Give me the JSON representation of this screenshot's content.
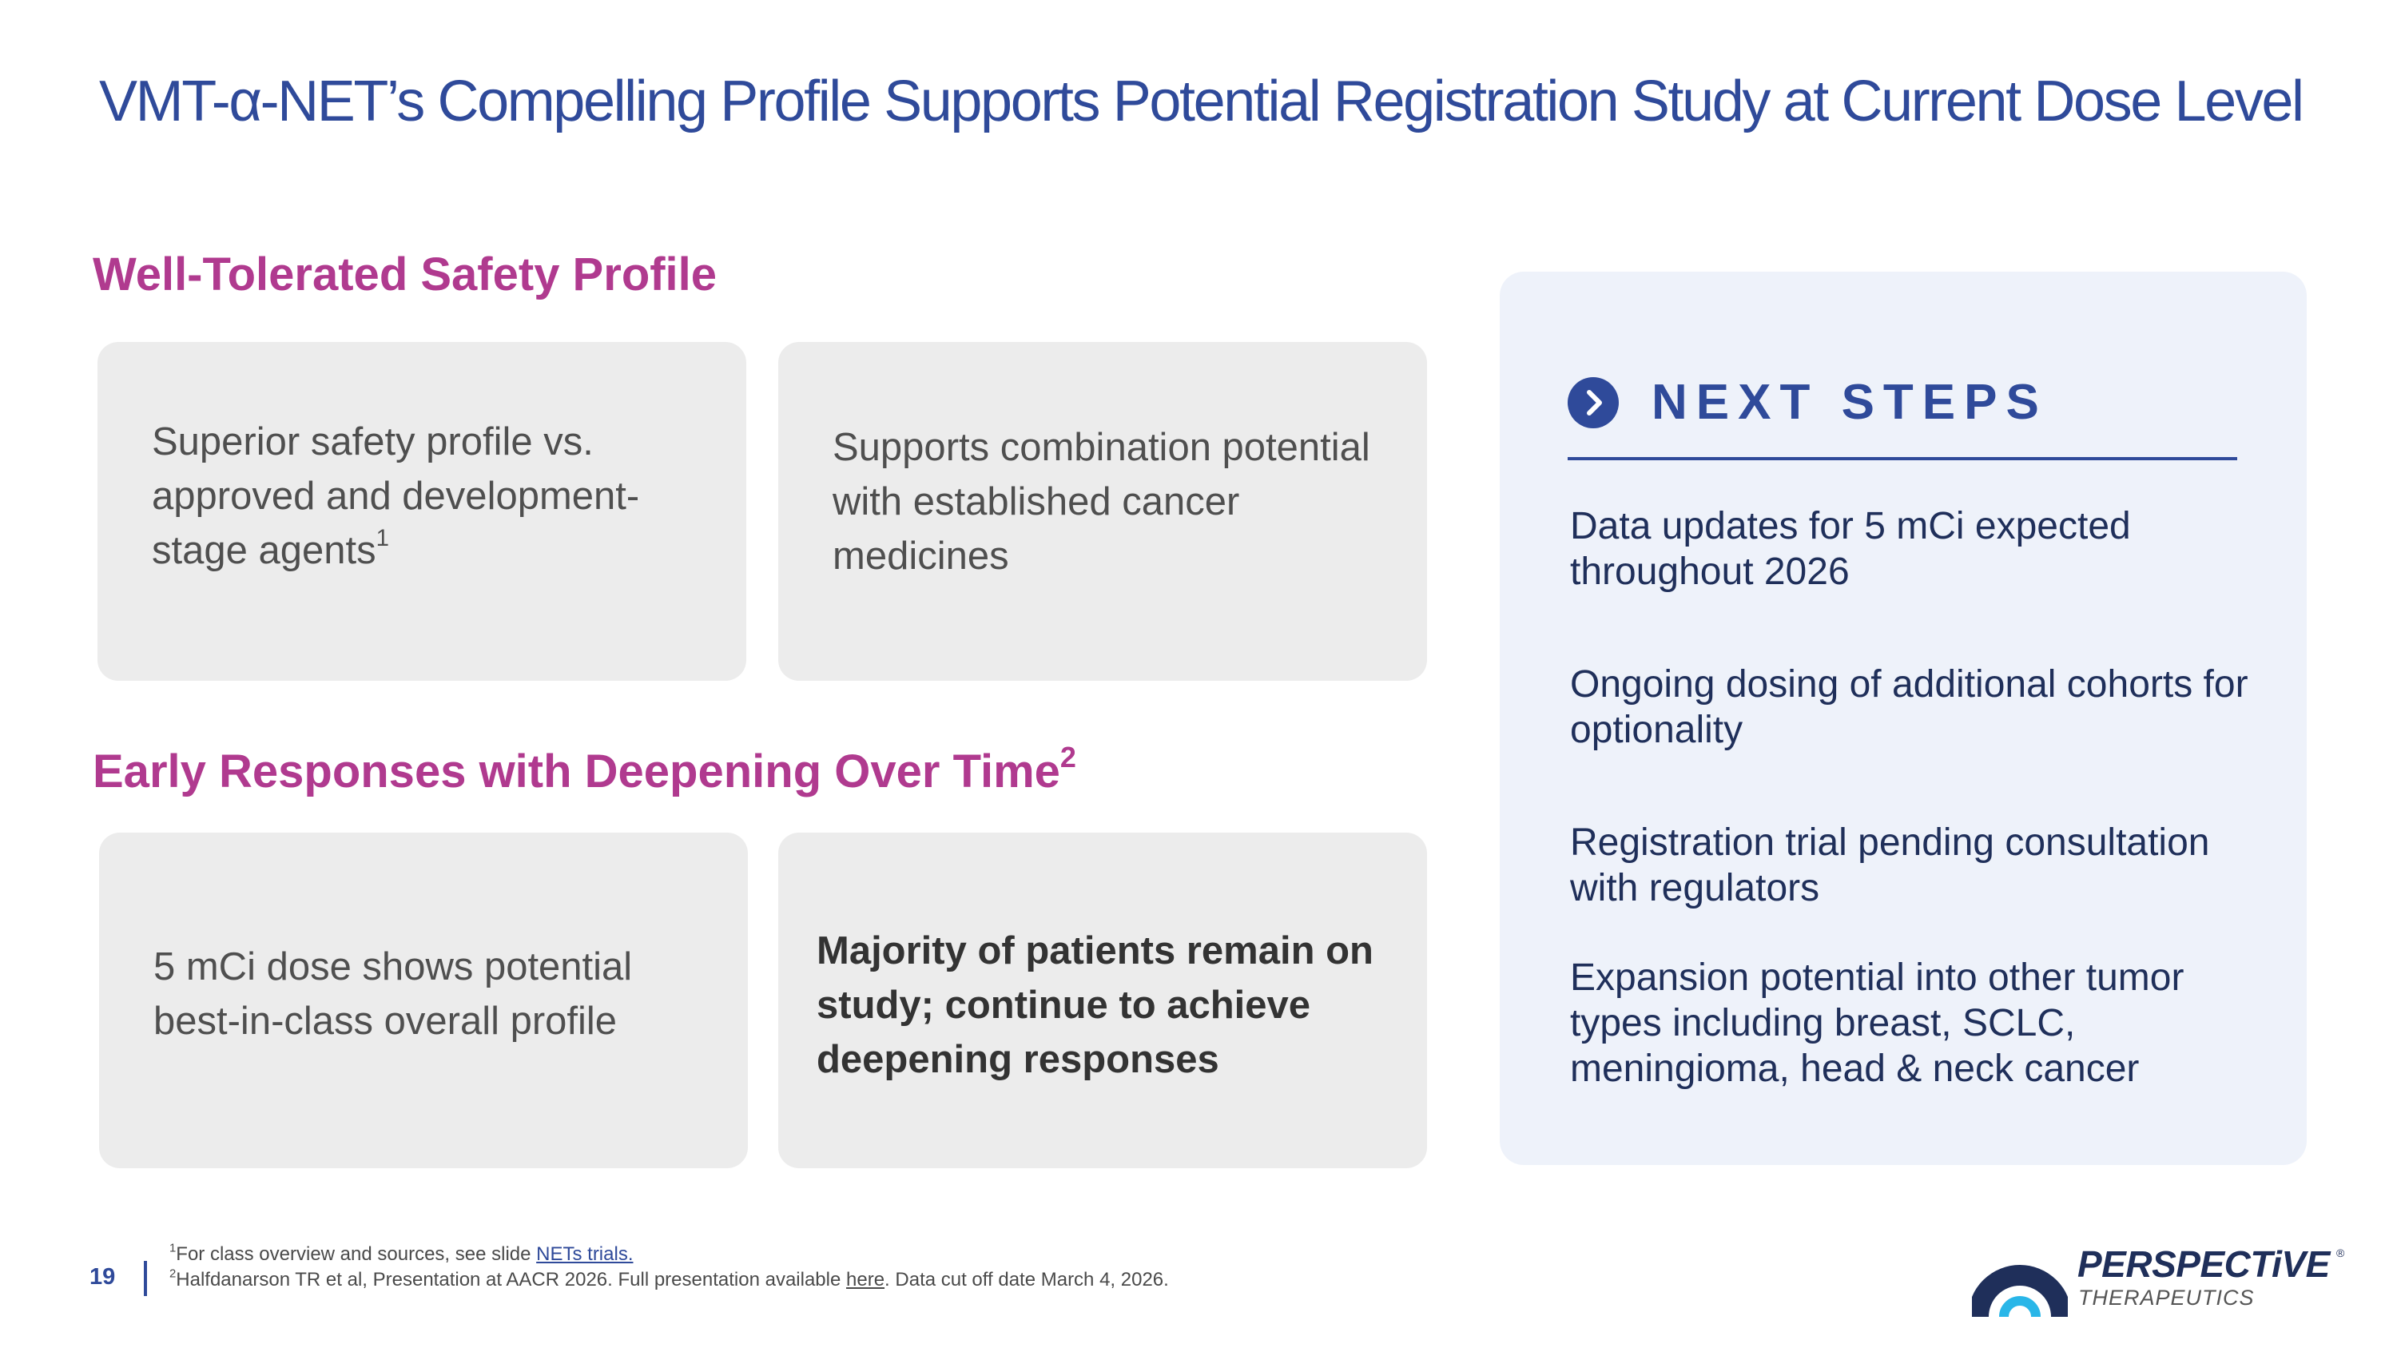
{
  "title": "VMT-α-NET’s Compelling Profile Supports Potential Registration Study at Current Dose Level",
  "safety": {
    "heading": "Well-Tolerated Safety Profile",
    "card1": {
      "text": "Superior safety profile vs. approved and development-stage agents",
      "sup": "1"
    },
    "card2": {
      "text": "Supports combination potential with established cancer medicines"
    }
  },
  "responses": {
    "heading": "Early Responses with Deepening Over Time",
    "heading_sup": "2",
    "card1": {
      "text": "5 mCi dose shows potential best-in-class overall profile"
    },
    "card2": {
      "text": "Majority of patients remain on study; continue to achieve deepening responses"
    }
  },
  "next_steps": {
    "icon": "chevron-right-circle-icon",
    "title": "NEXT STEPS",
    "items": [
      "Data updates for 5 mCi expected throughout 2026",
      "Ongoing dosing of additional cohorts for optionality",
      "Registration trial pending consultation with regulators",
      "Expansion potential into other tumor types including breast, SCLC, meningioma, head & neck cancer"
    ]
  },
  "footer": {
    "page_number": "19",
    "footnote1": {
      "sup": "1",
      "text": "For class overview and sources, see slide ",
      "link": "NETs trials."
    },
    "footnote2": {
      "sup": "2",
      "text_before": "Halfdanarson TR et al, Presentation at AACR 2026. Full presentation available ",
      "link": "here",
      "text_after": ". Data cut off date March 4, 2026."
    }
  },
  "logo": {
    "name": "PERSPECTiVE",
    "registered": "®",
    "subtitle": "THERAPEUTICS",
    "icon": "perspective-arc-logo-icon"
  },
  "colors": {
    "title_blue": "#2f4a9a",
    "heading_magenta": "#b03a8f",
    "card_gray": "#ececec",
    "panel_blue": "#eef2fa",
    "logo_navy": "#1f2f5a",
    "logo_cyan": "#29b6e8"
  }
}
